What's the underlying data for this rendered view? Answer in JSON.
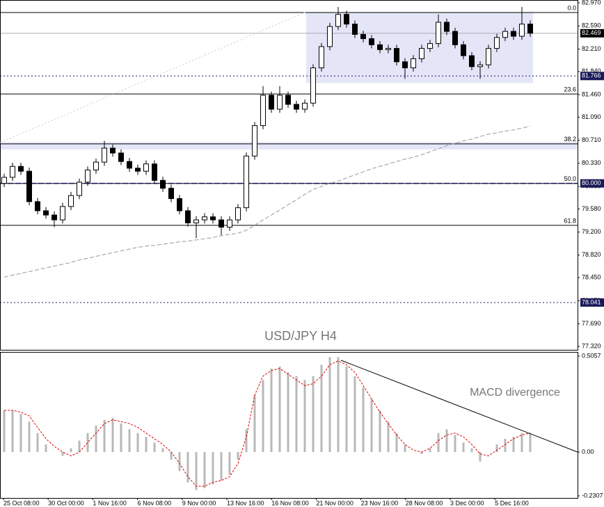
{
  "chart_data": [
    {
      "type": "candlestick",
      "title": "USD/JPY H4",
      "x_labels": [
        "25 Oct 08:00",
        "30 Oct 00:00",
        "1 Nov 16:00",
        "6 Nov 08:00",
        "9 Nov 00:00",
        "13 Nov 16:00",
        "16 Nov 08:00",
        "21 Nov 00:00",
        "23 Nov 16:00",
        "28 Nov 08:00",
        "3 Dec 00:00",
        "5 Dec 16:00"
      ],
      "open": [
        80.0,
        80.1,
        80.28,
        80.2,
        79.7,
        79.55,
        79.48,
        79.4,
        79.62,
        79.8,
        80.02,
        80.22,
        80.35,
        80.58,
        80.5,
        80.36,
        80.25,
        80.2,
        80.32,
        80.05,
        79.92,
        79.75,
        79.55,
        79.35,
        79.4,
        79.45,
        79.4,
        79.28,
        79.4,
        79.6,
        80.45,
        80.95,
        81.45,
        81.22,
        81.45,
        81.3,
        81.22,
        81.32,
        81.9,
        82.25,
        82.58,
        82.78,
        82.62,
        82.45,
        82.38,
        82.28,
        82.2,
        82.22,
        82.0,
        81.9,
        82.05,
        82.22,
        82.3,
        82.65,
        82.5,
        82.28,
        82.1,
        81.92,
        81.95,
        82.22,
        82.4,
        82.5,
        82.42,
        82.62
      ],
      "high": [
        80.16,
        80.34,
        80.34,
        80.26,
        79.76,
        79.61,
        79.54,
        79.68,
        79.86,
        80.08,
        80.28,
        80.41,
        80.7,
        80.64,
        80.56,
        80.42,
        80.31,
        80.38,
        80.38,
        80.11,
        79.98,
        79.81,
        79.61,
        79.46,
        79.51,
        79.51,
        79.46,
        79.46,
        79.66,
        80.51,
        81.01,
        81.6,
        81.51,
        81.6,
        81.51,
        81.36,
        81.38,
        81.96,
        82.31,
        82.64,
        82.9,
        82.84,
        82.68,
        82.51,
        82.44,
        82.34,
        82.28,
        82.28,
        82.06,
        82.11,
        82.28,
        82.36,
        82.78,
        82.71,
        82.56,
        82.34,
        82.16,
        82.01,
        82.28,
        82.46,
        82.56,
        82.56,
        82.9,
        82.68
      ],
      "low": [
        79.94,
        80.04,
        80.14,
        79.64,
        79.49,
        79.42,
        79.28,
        79.34,
        79.56,
        79.74,
        79.96,
        80.16,
        80.29,
        80.44,
        80.3,
        80.19,
        80.14,
        80.14,
        79.99,
        79.86,
        79.69,
        79.49,
        79.29,
        79.1,
        79.34,
        79.34,
        79.15,
        79.22,
        79.34,
        79.54,
        80.39,
        80.89,
        81.16,
        81.16,
        81.24,
        81.16,
        81.16,
        81.26,
        81.84,
        82.19,
        82.52,
        82.56,
        82.39,
        82.32,
        82.22,
        82.14,
        82.14,
        81.94,
        81.72,
        81.84,
        81.99,
        82.16,
        82.24,
        82.44,
        82.22,
        82.04,
        81.86,
        81.72,
        81.89,
        82.16,
        82.34,
        82.36,
        82.36,
        82.41
      ],
      "close": [
        80.1,
        80.28,
        80.2,
        79.7,
        79.55,
        79.48,
        79.4,
        79.62,
        79.8,
        80.02,
        80.22,
        80.35,
        80.58,
        80.5,
        80.36,
        80.25,
        80.2,
        80.32,
        80.05,
        79.92,
        79.75,
        79.55,
        79.35,
        79.4,
        79.45,
        79.4,
        79.28,
        79.4,
        79.6,
        80.45,
        80.95,
        81.45,
        81.22,
        81.45,
        81.3,
        81.22,
        81.32,
        81.9,
        82.25,
        82.58,
        82.78,
        82.62,
        82.45,
        82.38,
        82.28,
        82.2,
        82.22,
        82.0,
        81.9,
        82.05,
        82.22,
        82.3,
        82.65,
        82.5,
        82.28,
        82.1,
        81.92,
        81.95,
        82.22,
        82.4,
        82.5,
        82.42,
        82.62,
        82.47
      ],
      "up_color": "#ffffff",
      "down_color": "#000000",
      "ma": {
        "color": "#999999",
        "values": [
          78.46,
          78.49,
          78.52,
          78.55,
          78.58,
          78.61,
          78.64,
          78.67,
          78.7,
          78.74,
          78.77,
          78.8,
          78.83,
          78.86,
          78.89,
          78.92,
          78.95,
          78.97,
          78.98,
          79.0,
          79.02,
          79.04,
          79.05,
          79.07,
          79.09,
          79.11,
          79.14,
          79.16,
          79.18,
          79.23,
          79.31,
          79.4,
          79.48,
          79.56,
          79.65,
          79.73,
          79.82,
          79.9,
          79.95,
          80.0,
          80.04,
          80.09,
          80.14,
          80.19,
          80.24,
          80.28,
          80.32,
          80.36,
          80.4,
          80.43,
          80.47,
          80.52,
          80.57,
          80.62,
          80.66,
          80.7,
          80.73,
          80.77,
          80.81,
          80.83,
          80.86,
          80.88,
          80.91,
          80.94
        ]
      },
      "ylim": [
        77.263,
        83.016
      ],
      "yticks": [
        {
          "value": 82.97,
          "label": "82.970"
        },
        {
          "value": 82.59,
          "label": "82.590"
        },
        {
          "value": 82.21,
          "label": "82.210"
        },
        {
          "value": 81.84,
          "label": "81.840"
        },
        {
          "value": 81.46,
          "label": "81.460"
        },
        {
          "value": 81.09,
          "label": "81.090"
        },
        {
          "value": 80.71,
          "label": "80.710"
        },
        {
          "value": 80.33,
          "label": "80.330"
        },
        {
          "value": 79.95,
          "label": "79.950"
        },
        {
          "value": 79.58,
          "label": "79.580"
        },
        {
          "value": 79.2,
          "label": "79.200"
        },
        {
          "value": 78.82,
          "label": "78.820"
        },
        {
          "value": 78.45,
          "label": "78.450"
        },
        {
          "value": 78.07,
          "label": "78.070"
        },
        {
          "value": 77.69,
          "label": "77.690"
        },
        {
          "value": 77.32,
          "label": "77.320"
        }
      ],
      "fib_levels": [
        {
          "value": 82.81,
          "label": "0.0"
        },
        {
          "value": 81.47,
          "label": "23.6"
        },
        {
          "value": 80.65,
          "label": "38.2"
        },
        {
          "value": 80,
          "label": "50.0"
        },
        {
          "value": 79.31,
          "label": "61.8"
        }
      ],
      "zones": [
        {
          "from": 81.65,
          "to": 82.81,
          "color": "#e4e6f8"
        },
        {
          "from": 80.56,
          "to": 80.68,
          "color": "#e4e6f8"
        }
      ],
      "current_price": {
        "value": 82.469,
        "label": "82.469"
      },
      "hlines": [
        {
          "value": 81.766,
          "label": "81.766"
        },
        {
          "value": 80,
          "label": "80.000"
        },
        {
          "value": 78.041,
          "label": "78.041"
        }
      ]
    },
    {
      "type": "macd",
      "annotation": "MACD divergence",
      "histogram": {
        "color": "#b8b8b8",
        "values": [
          0.22,
          0.22,
          0.2,
          0.16,
          0.1,
          0.04,
          0,
          -0.02,
          0.02,
          0.06,
          0.1,
          0.14,
          0.17,
          0.18,
          0.15,
          0.12,
          0.1,
          0.08,
          0.05,
          0.02,
          -0.04,
          -0.1,
          -0.16,
          -0.2,
          -0.19,
          -0.17,
          -0.15,
          -0.12,
          -0.04,
          0.12,
          0.3,
          0.38,
          0.44,
          0.45,
          0.42,
          0.4,
          0.38,
          0.4,
          0.46,
          0.5,
          0.5,
          0.45,
          0.4,
          0.34,
          0.28,
          0.22,
          0.16,
          0.1,
          0.04,
          0,
          -0.01,
          0.02,
          0.1,
          0.12,
          0.09,
          0.05,
          0.02,
          -0.05,
          0,
          0.04,
          0.07,
          0.08,
          0.1,
          0.1
        ]
      },
      "signal": {
        "color": "#e00000",
        "values": [
          0.22,
          0.22,
          0.21,
          0.19,
          0.13,
          0.07,
          0.03,
          0,
          -0.02,
          0,
          0.05,
          0.1,
          0.15,
          0.17,
          0.16,
          0.15,
          0.13,
          0.1,
          0.07,
          0.04,
          0,
          -0.06,
          -0.13,
          -0.18,
          -0.18,
          -0.16,
          -0.15,
          -0.13,
          -0.06,
          0.08,
          0.3,
          0.4,
          0.43,
          0.44,
          0.41,
          0.38,
          0.35,
          0.36,
          0.4,
          0.46,
          0.48,
          0.46,
          0.42,
          0.35,
          0.28,
          0.21,
          0.15,
          0.09,
          0.04,
          0.01,
          0,
          0.02,
          0.06,
          0.09,
          0.1,
          0.08,
          0.04,
          -0.01,
          -0.02,
          0.01,
          0.04,
          0.07,
          0.09,
          0.1
        ]
      },
      "ylim": [
        -0.2418,
        0.524
      ],
      "yticks": [
        0.5057,
        {
          "value": 0,
          "label": "0.00"
        },
        -0.2307
      ]
    }
  ]
}
